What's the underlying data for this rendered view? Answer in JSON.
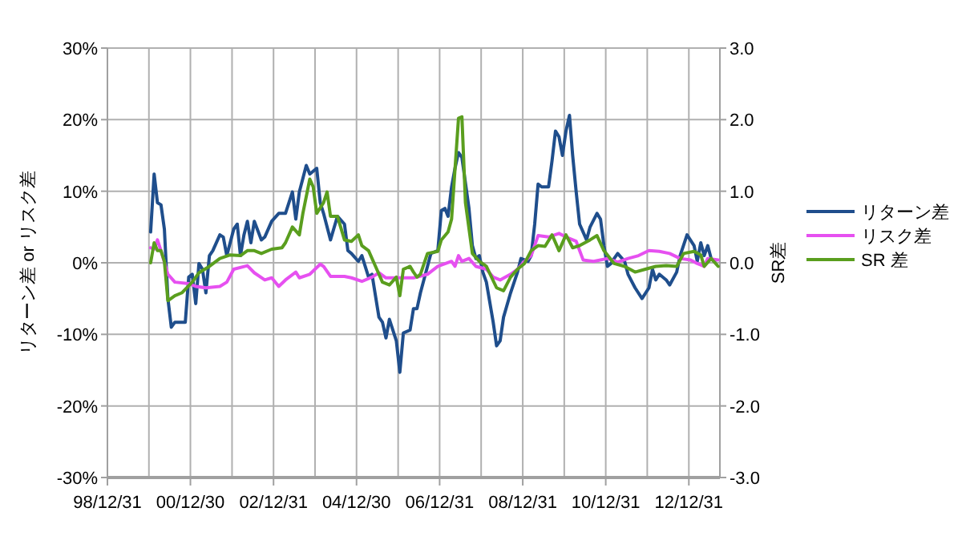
{
  "chart_data": {
    "type": "line",
    "ylabel": "リターン差 or リスク差",
    "y2label": "SR差",
    "xlim": [
      "1998-12-31",
      "2013-09-30"
    ],
    "xticks": [
      {
        "value": "1998-12-31",
        "label": "98/12/31"
      },
      {
        "value": "1999-12-31",
        "label": null
      },
      {
        "value": "2000-12-30",
        "label": "00/12/30"
      },
      {
        "value": "2001-12-31",
        "label": null
      },
      {
        "value": "2002-12-31",
        "label": "02/12/31"
      },
      {
        "value": "2003-12-31",
        "label": null
      },
      {
        "value": "2004-12-30",
        "label": "04/12/30"
      },
      {
        "value": "2005-12-31",
        "label": null
      },
      {
        "value": "2006-12-31",
        "label": "06/12/31"
      },
      {
        "value": "2007-12-31",
        "label": null
      },
      {
        "value": "2008-12-31",
        "label": "08/12/31"
      },
      {
        "value": "2009-12-31",
        "label": null
      },
      {
        "value": "2010-12-31",
        "label": "10/12/31"
      },
      {
        "value": "2011-12-31",
        "label": null
      },
      {
        "value": "2012-12-31",
        "label": "12/12/31"
      }
    ],
    "ylim": [
      -30,
      30
    ],
    "yticks": [
      {
        "value": -30,
        "label": "-30%"
      },
      {
        "value": -20,
        "label": "-20%"
      },
      {
        "value": -10,
        "label": "-10%"
      },
      {
        "value": 0,
        "label": "0%"
      },
      {
        "value": 10,
        "label": "10%"
      },
      {
        "value": 20,
        "label": "20%"
      },
      {
        "value": 30,
        "label": "30%"
      }
    ],
    "y2lim": [
      -3,
      3
    ],
    "y2ticks": [
      {
        "value": -3,
        "label": "-3.0"
      },
      {
        "value": -2,
        "label": "-2.0"
      },
      {
        "value": -1,
        "label": "-1.0"
      },
      {
        "value": 0,
        "label": "0.0"
      },
      {
        "value": 1,
        "label": "1.0"
      },
      {
        "value": 2,
        "label": "2.0"
      },
      {
        "value": 3,
        "label": "3.0"
      }
    ],
    "grid": true,
    "legend": "right",
    "series": [
      {
        "name": "リターン差",
        "color": "#1f4e8c",
        "x": [
          "2000-01",
          "2000-02",
          "2000-03",
          "2000-04",
          "2000-05",
          "2000-06",
          "2000-07",
          "2000-08",
          "2000-11",
          "2000-12",
          "2001-01",
          "2001-02",
          "2001-03",
          "2001-04",
          "2001-05",
          "2001-06",
          "2001-07",
          "2001-09",
          "2001-10",
          "2001-11",
          "2002-01",
          "2002-02",
          "2002-03",
          "2002-04",
          "2002-05",
          "2002-06",
          "2002-07",
          "2002-09",
          "2002-10",
          "2002-12",
          "2003-02",
          "2003-04",
          "2003-06",
          "2003-07",
          "2003-08",
          "2003-10",
          "2003-11",
          "2004-01",
          "2004-02",
          "2004-03",
          "2004-05",
          "2004-07",
          "2004-09",
          "2004-10",
          "2004-11",
          "2005-01",
          "2005-02",
          "2005-04",
          "2005-05",
          "2005-07",
          "2005-08",
          "2005-09",
          "2005-10",
          "2005-12",
          "2006-01",
          "2006-02",
          "2006-04",
          "2006-05",
          "2006-06",
          "2006-07",
          "2006-09",
          "2006-10",
          "2006-12",
          "2007-01",
          "2007-02",
          "2007-03",
          "2007-04",
          "2007-05",
          "2007-06",
          "2007-07",
          "2007-09",
          "2007-10",
          "2007-11",
          "2007-12",
          "2008-01",
          "2008-02",
          "2008-04",
          "2008-05",
          "2008-06",
          "2008-07",
          "2008-09",
          "2008-11",
          "2008-12",
          "2009-02",
          "2009-03",
          "2009-04",
          "2009-05",
          "2009-06",
          "2009-08",
          "2009-09",
          "2009-10",
          "2009-11",
          "2009-12",
          "2010-01",
          "2010-02",
          "2010-03",
          "2010-04",
          "2010-05",
          "2010-06",
          "2010-07",
          "2010-08",
          "2010-10",
          "2010-11",
          "2010-12",
          "2011-01",
          "2011-02",
          "2011-03",
          "2011-04",
          "2011-06",
          "2011-07",
          "2011-09",
          "2011-11",
          "2012-01",
          "2012-02",
          "2012-03",
          "2012-04",
          "2012-06",
          "2012-07",
          "2012-09",
          "2012-10",
          "2012-12",
          "2013-02",
          "2013-03",
          "2013-04",
          "2013-05",
          "2013-06",
          "2013-07",
          "2013-08"
        ],
        "values": [
          4.3,
          12.4,
          8.4,
          8.1,
          4.7,
          -5.0,
          -9.0,
          -8.3,
          -8.3,
          -2.0,
          -1.6,
          -5.7,
          -0.1,
          -0.9,
          -4.2,
          1.0,
          1.7,
          3.9,
          3.6,
          1.0,
          4.7,
          5.4,
          1.0,
          3.9,
          5.8,
          2.8,
          5.8,
          3.2,
          3.6,
          5.8,
          6.9,
          6.9,
          9.9,
          6.1,
          9.9,
          13.6,
          12.4,
          13.2,
          8.4,
          6.9,
          3.2,
          6.5,
          5.4,
          1.7,
          1.3,
          0.2,
          1.0,
          -2.0,
          -1.6,
          -7.6,
          -8.3,
          -10.5,
          -7.9,
          -10.9,
          -15.3,
          -9.8,
          -9.4,
          -6.4,
          -6.4,
          -4.2,
          -0.5,
          1.3,
          1.7,
          7.3,
          7.6,
          6.5,
          10.6,
          13.2,
          15.4,
          14.7,
          7.6,
          2.4,
          0.6,
          1.0,
          -1.3,
          -2.7,
          -8.3,
          -11.6,
          -10.9,
          -7.6,
          -4.2,
          -1.3,
          0.6,
          0.2,
          1.0,
          5.4,
          11.0,
          10.6,
          10.6,
          14.3,
          18.4,
          17.6,
          15.0,
          18.4,
          20.6,
          15.0,
          9.9,
          5.4,
          4.3,
          3.2,
          5.0,
          6.9,
          6.1,
          2.4,
          -0.5,
          -0.1,
          0.6,
          1.3,
          0.2,
          -1.6,
          -3.5,
          -5.0,
          -3.5,
          -0.9,
          -2.4,
          -1.6,
          -2.4,
          -3.1,
          -1.3,
          1.0,
          3.9,
          2.4,
          0.2,
          2.8,
          1.0,
          2.4,
          0.6,
          0.2
        ]
      },
      {
        "name": "リスク差",
        "color": "#e650f0",
        "x": [
          "2000-01",
          "2000-02",
          "2000-03",
          "2000-04",
          "2000-06",
          "2000-08",
          "2000-12",
          "2001-02",
          "2001-05",
          "2001-09",
          "2001-11",
          "2002-01",
          "2002-05",
          "2002-07",
          "2002-10",
          "2002-12",
          "2003-02",
          "2003-04",
          "2003-07",
          "2003-08",
          "2003-11",
          "2004-02",
          "2004-03",
          "2004-05",
          "2004-09",
          "2004-11",
          "2005-02",
          "2005-05",
          "2005-07",
          "2005-09",
          "2006-05",
          "2006-06",
          "2006-09",
          "2006-12",
          "2007-04",
          "2007-05",
          "2007-06",
          "2007-07",
          "2007-09",
          "2007-11",
          "2008-02",
          "2008-04",
          "2008-06",
          "2008-09",
          "2008-11",
          "2009-01",
          "2009-03",
          "2009-05",
          "2009-08",
          "2009-11",
          "2010-01",
          "2010-04",
          "2010-06",
          "2010-09",
          "2011-01",
          "2011-04",
          "2011-07",
          "2011-10",
          "2012-01",
          "2012-04",
          "2012-07",
          "2012-10",
          "2013-01",
          "2013-03",
          "2013-05",
          "2013-06",
          "2013-09"
        ],
        "values": [
          2.1,
          1.9,
          3.2,
          1.7,
          -1.6,
          -2.7,
          -2.9,
          -3.3,
          -3.5,
          -3.3,
          -2.7,
          -0.9,
          -0.4,
          -1.4,
          -2.4,
          -2.1,
          -3.3,
          -2.4,
          -1.3,
          -2.1,
          -1.6,
          -0.2,
          -0.5,
          -1.9,
          -1.9,
          -2.1,
          -2.6,
          -2.0,
          -1.4,
          -2.1,
          -2.1,
          -2.0,
          -1.6,
          -0.5,
          0.2,
          -0.5,
          1.0,
          0.2,
          0.6,
          -0.5,
          -0.9,
          -2.0,
          -2.4,
          -1.6,
          -0.9,
          0.2,
          1.0,
          3.8,
          3.6,
          4.1,
          3.6,
          3.0,
          0.4,
          0.2,
          0.6,
          0.1,
          0.6,
          1.0,
          1.7,
          1.6,
          1.3,
          0.6,
          0.4,
          -0.1,
          -0.5,
          0.6,
          0.4
        ]
      },
      {
        "name": "SR 差",
        "color": "#5a9e1e",
        "axis": "y2",
        "x": [
          "2000-01",
          "2000-02",
          "2000-03",
          "2000-04",
          "2000-05",
          "2000-06",
          "2000-08",
          "2000-10",
          "2001-01",
          "2001-03",
          "2001-06",
          "2001-09",
          "2001-12",
          "2002-03",
          "2002-05",
          "2002-07",
          "2002-09",
          "2002-12",
          "2003-03",
          "2003-04",
          "2003-06",
          "2003-08",
          "2003-09",
          "2003-11",
          "2003-12",
          "2004-01",
          "2004-03",
          "2004-04",
          "2004-05",
          "2004-07",
          "2004-09",
          "2004-11",
          "2005-01",
          "2005-02",
          "2005-04",
          "2005-06",
          "2005-08",
          "2005-10",
          "2005-12",
          "2006-01",
          "2006-02",
          "2006-04",
          "2006-05",
          "2006-06",
          "2006-07",
          "2006-09",
          "2006-12",
          "2007-01",
          "2007-03",
          "2007-04",
          "2007-06",
          "2007-07",
          "2007-08",
          "2007-10",
          "2007-12",
          "2008-02",
          "2008-05",
          "2008-07",
          "2008-09",
          "2008-11",
          "2009-01",
          "2009-03",
          "2009-05",
          "2009-07",
          "2009-09",
          "2009-11",
          "2010-01",
          "2010-03",
          "2010-05",
          "2010-08",
          "2010-10",
          "2010-12",
          "2011-03",
          "2011-06",
          "2011-09",
          "2011-12",
          "2012-03",
          "2012-06",
          "2012-09",
          "2012-11",
          "2013-02",
          "2013-04",
          "2013-05",
          "2013-07",
          "2013-09"
        ],
        "values": [
          0.0,
          0.28,
          0.17,
          0.17,
          0.02,
          -0.53,
          -0.46,
          -0.42,
          -0.27,
          -0.14,
          -0.05,
          0.06,
          0.11,
          0.1,
          0.17,
          0.17,
          0.13,
          0.19,
          0.21,
          0.28,
          0.5,
          0.39,
          0.69,
          1.17,
          1.06,
          0.69,
          0.84,
          0.99,
          0.65,
          0.65,
          0.32,
          0.3,
          0.39,
          0.24,
          0.17,
          -0.05,
          -0.27,
          -0.31,
          -0.2,
          -0.46,
          -0.09,
          -0.05,
          -0.13,
          -0.2,
          -0.16,
          0.13,
          0.16,
          0.32,
          0.43,
          0.61,
          2.02,
          2.04,
          0.84,
          0.13,
          0.02,
          -0.05,
          -0.35,
          -0.39,
          -0.2,
          -0.09,
          -0.01,
          0.17,
          0.24,
          0.23,
          0.39,
          0.17,
          0.39,
          0.21,
          0.24,
          0.32,
          0.38,
          0.17,
          -0.01,
          -0.05,
          -0.13,
          -0.09,
          -0.05,
          -0.04,
          -0.05,
          0.13,
          0.16,
          0.11,
          -0.05,
          0.06,
          -0.05
        ]
      }
    ]
  }
}
